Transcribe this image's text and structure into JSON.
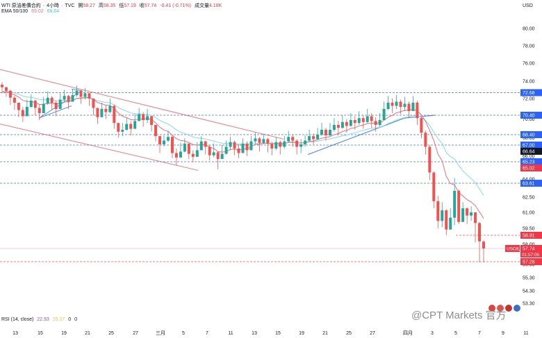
{
  "legend": {
    "symbol": "WTI 原油差價合約",
    "interval": "4小時",
    "source": "TVC",
    "open_label": "開",
    "open": "58.27",
    "high_label": "高",
    "high": "58.35",
    "low_label": "低",
    "low": "57.19",
    "close_label": "收",
    "close": "57.74",
    "change": "-0.41 (-0.71%)",
    "volume_label": "成交量",
    "volume": "4.18K",
    "ema_label": "EMA 50/100",
    "ema50": "65.02",
    "ema100": "66.64"
  },
  "rsi": {
    "label": "RSI (14, close)",
    "value1": "22.93",
    "value2": "25.37",
    "value3": "0",
    "value4": "0"
  },
  "watermark": "@CPT Markets 官方",
  "currency": "USD",
  "colors": {
    "up": "#26a69a",
    "down": "#ef5350",
    "ema50": "#f06b7a",
    "ema100": "#7fdde6",
    "level": "#4a74b8",
    "channel": "#f2777f",
    "trendline": "#5b8def",
    "price_badge": "#f23645",
    "level_badge": "#2962ff"
  },
  "chart_data": {
    "type": "candlestick",
    "y_ticks": [
      80.0,
      78.0,
      76.0,
      74.0,
      72.0,
      70.0,
      68.0,
      66.0,
      64.0,
      62.5,
      61.0,
      59.5,
      58.0,
      56.9,
      55.3,
      54.3,
      53.3
    ],
    "x_ticks": [
      "13",
      "15",
      "19",
      "21",
      "25",
      "27",
      "三月",
      "5",
      "7",
      "11",
      "13",
      "15",
      "19",
      "21",
      "25",
      "27",
      "四月",
      "3",
      "5",
      "7",
      "9",
      "11"
    ],
    "levels": [
      72.68,
      70.4,
      68.4,
      67.0,
      65.23,
      63.61
    ],
    "dashed_red_levels": [
      58.91,
      57.28
    ],
    "ema_badges": {
      "ema100": 66.64,
      "ema50": 65.02
    },
    "current": {
      "symbol": "USOIL",
      "price": 57.74,
      "countdown": "01:57:05"
    },
    "closes": [
      73.3,
      72.9,
      72.1,
      71.6,
      70.9,
      70.3,
      71.2,
      71.8,
      71.1,
      70.6,
      71.5,
      72.1,
      71.6,
      71.0,
      71.9,
      72.3,
      71.7,
      72.4,
      72.9,
      72.2,
      72.6,
      72.0,
      71.1,
      70.2,
      71.0,
      70.7,
      71.3,
      69.6,
      68.7,
      68.9,
      69.5,
      69.0,
      69.8,
      70.5,
      69.9,
      70.3,
      69.4,
      68.2,
      67.1,
      67.6,
      68.1,
      66.4,
      65.8,
      66.6,
      67.2,
      66.3,
      65.9,
      66.7,
      67.5,
      66.9,
      66.1,
      66.5,
      65.6,
      66.3,
      66.9,
      67.4,
      66.8,
      66.4,
      67.2,
      66.7,
      67.5,
      67.9,
      67.3,
      67.8,
      67.2,
      66.8,
      67.4,
      66.9,
      67.5,
      68.1,
      67.6,
      66.9,
      67.1,
      67.6,
      68.2,
      67.8,
      68.4,
      68.9,
      68.3,
      68.9,
      69.4,
      69.1,
      69.7,
      69.3,
      69.9,
      69.6,
      70.1,
      69.7,
      70.3,
      69.8,
      69.4,
      69.9,
      71.0,
      71.6,
      71.3,
      71.7,
      71.2,
      71.5,
      70.8,
      71.6,
      70.1,
      68.6,
      66.9,
      64.6,
      62.1,
      60.2,
      61.2,
      59.4,
      60.5,
      63.0,
      60.1,
      61.4,
      60.7,
      61.0,
      60.0,
      58.3,
      57.74
    ],
    "highs": [
      73.9,
      73.4,
      73.0,
      72.3,
      71.6,
      71.2,
      71.9,
      72.5,
      71.9,
      71.4,
      72.2,
      72.8,
      72.3,
      71.8,
      72.6,
      73.0,
      72.4,
      73.1,
      73.5,
      72.9,
      73.2,
      72.7,
      71.9,
      71.0,
      71.6,
      71.4,
      72.0,
      71.4,
      69.5,
      69.6,
      70.2,
      69.8,
      70.5,
      71.1,
      70.7,
      71.0,
      70.3,
      69.4,
      68.2,
      68.3,
      68.8,
      68.3,
      66.8,
      67.3,
      67.9,
      67.2,
      66.7,
      67.4,
      68.2,
      67.6,
      67.0,
      67.2,
      66.6,
      67.0,
      67.6,
      68.1,
      67.6,
      67.1,
      67.9,
      67.5,
      68.2,
      68.6,
      68.1,
      68.5,
      68.0,
      67.5,
      68.1,
      67.6,
      68.2,
      68.8,
      68.4,
      67.8,
      67.8,
      68.3,
      68.9,
      68.5,
      69.1,
      69.6,
      69.1,
      69.6,
      70.1,
      69.8,
      70.4,
      70.0,
      70.6,
      70.3,
      70.8,
      70.4,
      71.0,
      70.6,
      70.2,
      70.6,
      71.7,
      72.3,
      72.0,
      72.4,
      71.9,
      72.2,
      71.7,
      72.3,
      71.8,
      70.2,
      68.8,
      67.0,
      64.7,
      62.6,
      62.0,
      61.3,
      61.4,
      64.1,
      63.1,
      62.0,
      61.5,
      61.6,
      61.0,
      60.1,
      58.4
    ],
    "lows": [
      72.6,
      72.2,
      71.4,
      70.9,
      70.2,
      69.7,
      70.5,
      71.1,
      70.4,
      69.9,
      70.8,
      71.4,
      70.9,
      70.3,
      71.2,
      71.6,
      71.0,
      71.7,
      72.2,
      71.5,
      71.9,
      71.3,
      70.4,
      69.5,
      70.3,
      70.0,
      70.6,
      69.0,
      68.0,
      68.2,
      68.8,
      68.3,
      69.1,
      69.8,
      69.2,
      69.6,
      68.7,
      67.5,
      66.4,
      66.9,
      67.4,
      65.7,
      65.1,
      65.9,
      66.5,
      65.6,
      65.2,
      66.0,
      66.8,
      66.2,
      65.4,
      65.8,
      64.9,
      65.6,
      66.2,
      66.7,
      66.1,
      65.7,
      66.5,
      66.0,
      66.8,
      67.2,
      66.6,
      67.1,
      66.5,
      66.1,
      66.7,
      66.2,
      66.8,
      67.4,
      66.9,
      66.2,
      66.4,
      66.9,
      67.5,
      67.1,
      67.7,
      68.2,
      67.6,
      68.2,
      68.7,
      68.4,
      69.0,
      68.6,
      69.2,
      68.9,
      69.4,
      69.0,
      69.6,
      69.1,
      68.7,
      69.2,
      70.3,
      70.9,
      70.6,
      71.0,
      70.5,
      70.8,
      70.1,
      70.9,
      69.4,
      67.9,
      66.2,
      63.9,
      61.4,
      59.5,
      59.6,
      58.9,
      59.7,
      59.8,
      59.9,
      60.5,
      59.9,
      60.2,
      58.2,
      57.19,
      57.19
    ]
  }
}
